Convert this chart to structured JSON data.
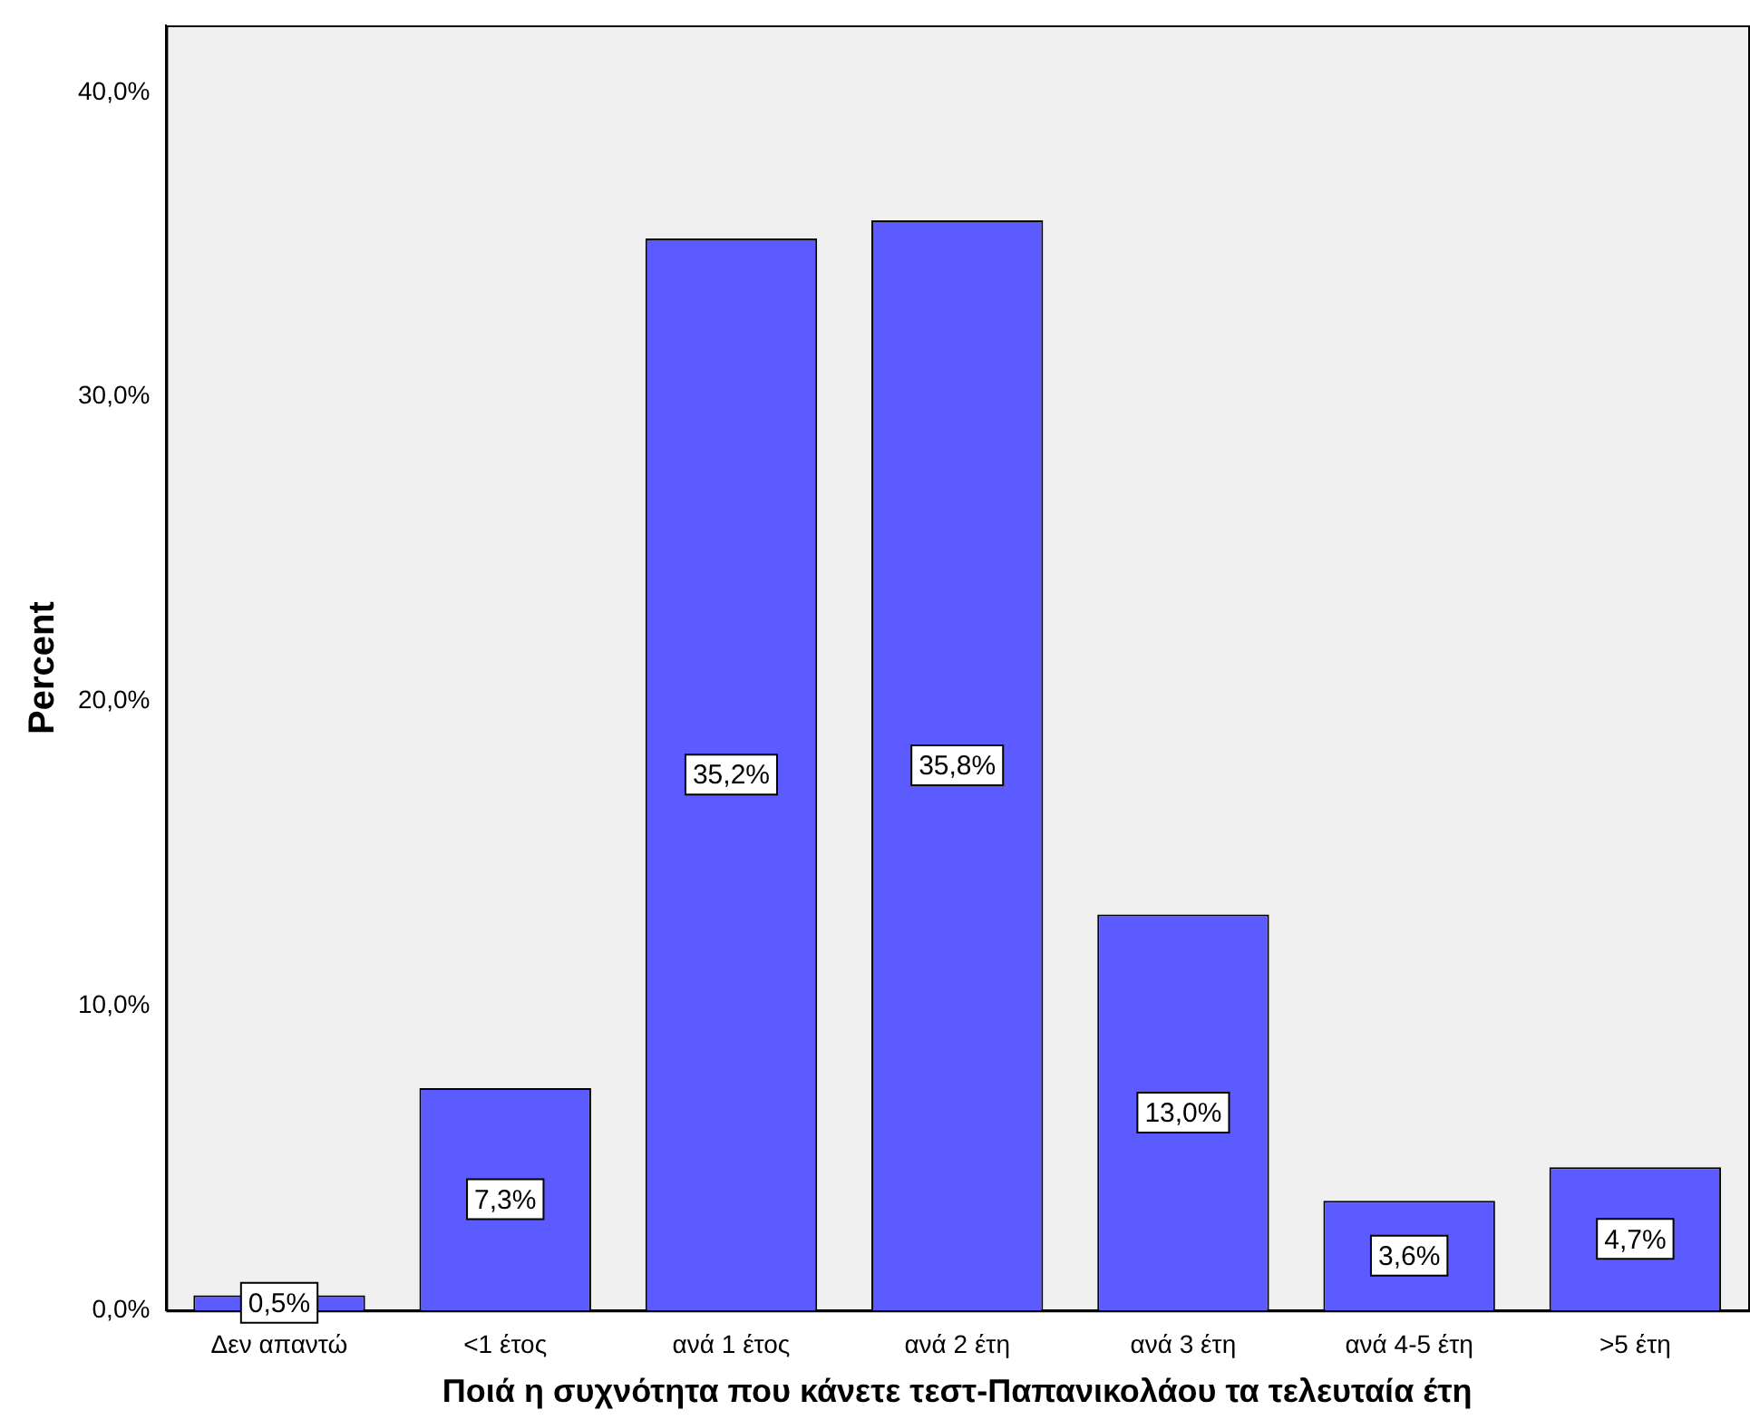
{
  "chart_data": {
    "type": "bar",
    "xlabel": "Ποιά η συχνότητα που κάνετε τεστ-Παπανικολάου τα τελευταία έτη",
    "ylabel": "Percent",
    "categories": [
      "Δεν απαντώ",
      "<1 έτος",
      "ανά 1 έτος",
      "ανά 2 έτη",
      "ανά 3 έτη",
      "ανά 4-5 έτη",
      ">5 έτη"
    ],
    "values": [
      0.5,
      7.3,
      35.2,
      35.8,
      13.0,
      3.6,
      4.7
    ],
    "value_labels": [
      "0,5%",
      "7,3%",
      "35,2%",
      "35,8%",
      "13,0%",
      "3,6%",
      "4,7%"
    ],
    "color": "#5b5bff",
    "ylim": [
      0,
      42.2
    ],
    "yticks": [
      {
        "value": 0,
        "label": "0,0%"
      },
      {
        "value": 10,
        "label": "10,0%"
      },
      {
        "value": 20,
        "label": "20,0%"
      },
      {
        "value": 30,
        "label": "30,0%"
      },
      {
        "value": 40,
        "label": "40,0%"
      }
    ],
    "grid": false,
    "legend": false
  }
}
